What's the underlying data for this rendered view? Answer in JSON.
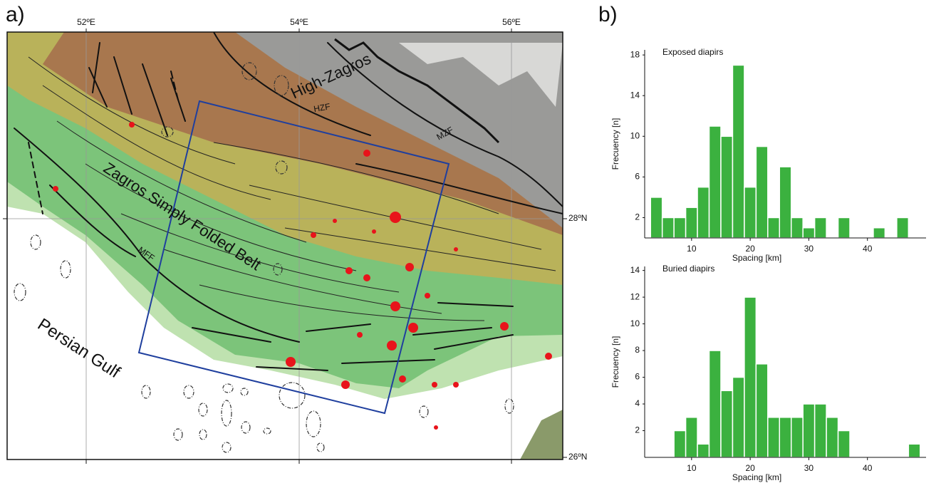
{
  "panel_a": {
    "label": "a)",
    "lon_ticks": [
      "52ºE",
      "54ºE",
      "56ºE"
    ],
    "lat_ticks": [
      "28ºN",
      "26ºN"
    ],
    "labels": {
      "high_zagros": "High-Zagros",
      "hzf": "HZF",
      "mzf": "MZF",
      "sfb": "Zagros Simply Folded Belt",
      "mff": "MFF",
      "gulf": "Persian Gulf"
    }
  },
  "panel_b": {
    "label": "b)"
  },
  "chart_data": [
    {
      "type": "histogram",
      "title": "Exposed diapirs",
      "x_label": "Spacing [km]",
      "y_label": "Frecuency [n]",
      "bins": [
        3,
        5,
        7,
        9,
        11,
        13,
        15,
        17,
        19,
        21,
        23,
        25,
        27,
        29,
        31,
        33,
        35,
        37,
        39,
        41,
        43,
        45,
        47
      ],
      "values": [
        4,
        2,
        2,
        3,
        5,
        11,
        10,
        17,
        5,
        9,
        2,
        7,
        2,
        1,
        2,
        0,
        2,
        0,
        0,
        1,
        0,
        2
      ],
      "color": "#3bb13f",
      "xlim": [
        2,
        50
      ],
      "xticks": [
        10,
        20,
        30,
        40
      ],
      "ylim": [
        0,
        18.5
      ],
      "yticks": [
        2,
        6,
        10,
        14,
        18
      ]
    },
    {
      "type": "histogram",
      "title": "Buried diapirs",
      "x_label": "Spacing [km]",
      "y_label": "Frecuency [n]",
      "bins": [
        7,
        9,
        11,
        13,
        15,
        17,
        19,
        21,
        23,
        25,
        27,
        29,
        31,
        33,
        35,
        37,
        39,
        41,
        43,
        45,
        47,
        49
      ],
      "values": [
        2,
        3,
        1,
        8,
        5,
        6,
        12,
        7,
        3,
        3,
        3,
        4,
        4,
        3,
        2,
        0,
        0,
        0,
        0,
        0,
        1
      ],
      "color": "#3bb13f",
      "xlim": [
        2,
        50
      ],
      "xticks": [
        10,
        20,
        30,
        40
      ],
      "ylim": [
        0,
        14.3
      ],
      "yticks": [
        2,
        4,
        6,
        8,
        10,
        12,
        14
      ]
    }
  ]
}
